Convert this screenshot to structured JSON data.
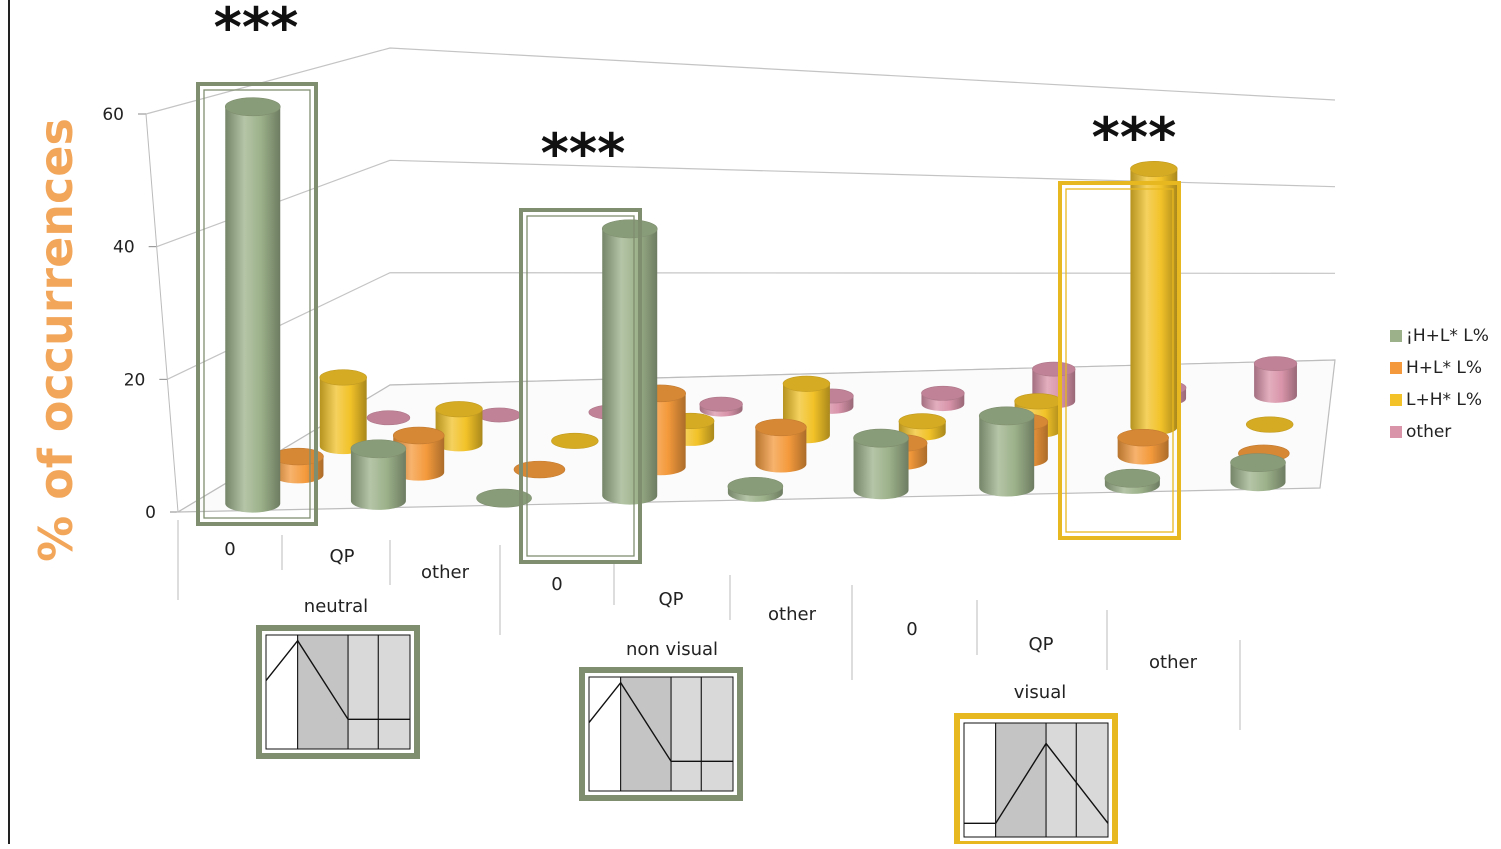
{
  "chart_data": {
    "type": "bar",
    "ylabel": "% of occurrences",
    "ylim": [
      0,
      60
    ],
    "yticks": [
      "0",
      "20",
      "40",
      "60"
    ],
    "groups": [
      {
        "label": "neutral",
        "categories": [
          "0",
          "QP",
          "other"
        ],
        "significance": "***"
      },
      {
        "label": "non visual",
        "categories": [
          "0",
          "QP",
          "other"
        ],
        "significance": "***"
      },
      {
        "label": "visual",
        "categories": [
          "0",
          "QP",
          "other"
        ],
        "significance": "***"
      }
    ],
    "series": [
      {
        "name": "¡H+L* L%",
        "color": "#9cb18a",
        "values": [
          61,
          8,
          0,
          41,
          1,
          8,
          11,
          1,
          3
        ]
      },
      {
        "name": "H+L* L%",
        "color": "#f49a3c",
        "values": [
          3,
          6,
          0,
          12,
          6,
          3,
          6,
          3,
          0
        ]
      },
      {
        "name": "L+H* L%",
        "color": "#f2c228",
        "values": [
          12,
          6,
          0,
          3,
          9,
          2,
          5,
          45,
          0
        ]
      },
      {
        "name": "other",
        "color": "#d994aa",
        "values": [
          0,
          0,
          0,
          1,
          2,
          2,
          6,
          2,
          6
        ]
      }
    ],
    "highlights": [
      {
        "group": "neutral",
        "category": "0",
        "series": "¡H+L* L%"
      },
      {
        "group": "non visual",
        "category": "0",
        "series": "¡H+L* L%"
      },
      {
        "group": "visual",
        "category": "QP",
        "series": "L+H* L%"
      }
    ],
    "legend_position": "right"
  },
  "colors": {
    "highlight_green": "#7f8e6f",
    "highlight_yellow": "#e8b820",
    "title": "#f2a65a"
  }
}
